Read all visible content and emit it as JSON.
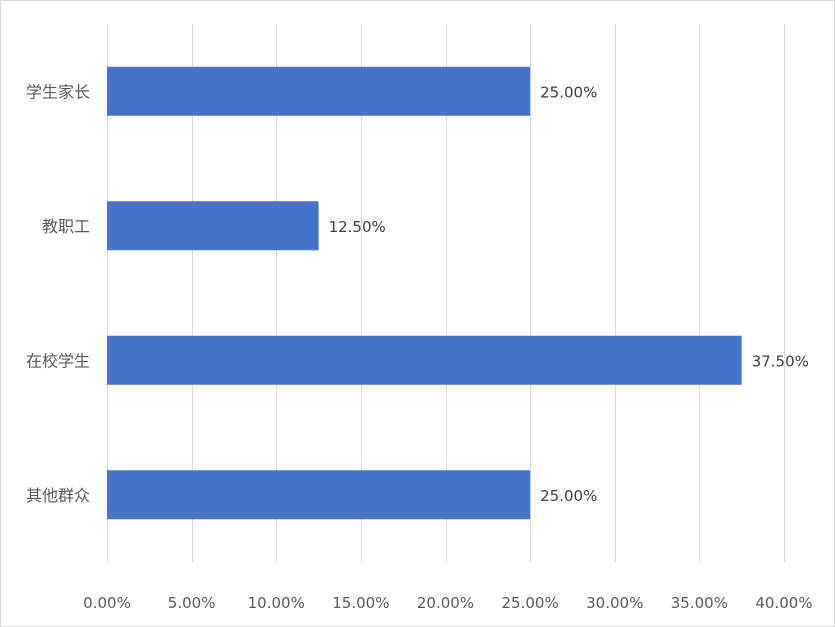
{
  "chart_data": {
    "type": "bar",
    "orientation": "horizontal",
    "categories": [
      "学生家长",
      "教职工",
      "在校学生",
      "其他群众"
    ],
    "values": [
      25.0,
      12.5,
      37.5,
      25.0
    ],
    "value_labels": [
      "25.00%",
      "12.50%",
      "37.50%",
      "25.00%"
    ],
    "title": "",
    "xlabel": "",
    "ylabel": "",
    "xlim": [
      0,
      40
    ],
    "x_ticks": [
      0,
      5,
      10,
      15,
      20,
      25,
      30,
      35,
      40
    ],
    "x_tick_labels": [
      "0.00%",
      "5.00%",
      "10.00%",
      "15.00%",
      "20.00%",
      "25.00%",
      "30.00%",
      "35.00%",
      "40.00%"
    ],
    "grid": "vertical",
    "legend": "none",
    "bar_color": "#4774c9"
  }
}
